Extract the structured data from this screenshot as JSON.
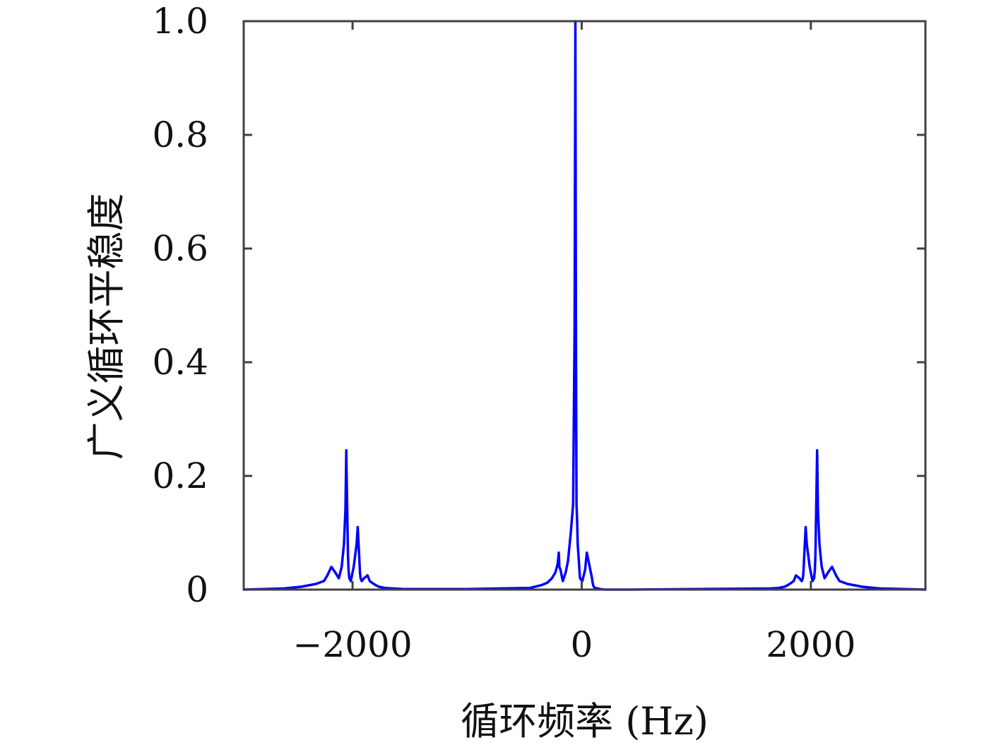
{
  "chart_data": {
    "type": "line",
    "title": "",
    "xlabel": "循环频率 (Hz)",
    "ylabel": "广义循环平稳度",
    "xlim": [
      -2950,
      3000
    ],
    "ylim": [
      0,
      1.0
    ],
    "xticks": [
      -2000,
      0,
      2000
    ],
    "xtick_labels": [
      "−2000",
      "0",
      "2000"
    ],
    "yticks": [
      0,
      0.2,
      0.4,
      0.6,
      0.8,
      1.0
    ],
    "ytick_labels": [
      "0",
      "0.2",
      "0.4",
      "0.6",
      "0.8",
      "1.0"
    ],
    "grid": false,
    "legend": "none",
    "line_color": "#0000ff",
    "series": [
      {
        "x": [
          -2950,
          -2600,
          -2450,
          -2320,
          -2250,
          -2220,
          -2185,
          -2150,
          -2120,
          -2095,
          -2075,
          -2062,
          -2055,
          -2050,
          -2045,
          -2040,
          -2035,
          -2028,
          -2015,
          -1990,
          -1965,
          -1955,
          -1945,
          -1940,
          -1935,
          -1930,
          -1920,
          -1900,
          -1870,
          -1850,
          -1830,
          -1800,
          -1770,
          -1720,
          -1650,
          -1550,
          -1000,
          -450,
          -350,
          -300,
          -260,
          -230,
          -210,
          -200,
          -195,
          -185,
          -165,
          -140,
          -120,
          -95,
          -75,
          -62,
          -55,
          -50,
          -45,
          -40,
          -35,
          -28,
          -15,
          5,
          30,
          45,
          65,
          80,
          90,
          95,
          100,
          105,
          115,
          140,
          160,
          200,
          260,
          320,
          420,
          1000,
          1650,
          1720,
          1770,
          1800,
          1830,
          1850,
          1870,
          1900,
          1920,
          1930,
          1935,
          1940,
          1945,
          1955,
          1965,
          1990,
          2015,
          2028,
          2035,
          2040,
          2045,
          2050,
          2055,
          2062,
          2075,
          2095,
          2120,
          2150,
          2185,
          2220,
          2250,
          2320,
          2450,
          2600,
          3000
        ],
        "y": [
          0.0,
          0.002,
          0.005,
          0.01,
          0.015,
          0.025,
          0.04,
          0.03,
          0.02,
          0.04,
          0.08,
          0.14,
          0.245,
          0.18,
          0.12,
          0.06,
          0.035,
          0.02,
          0.015,
          0.04,
          0.08,
          0.11,
          0.07,
          0.05,
          0.03,
          0.02,
          0.015,
          0.02,
          0.025,
          0.015,
          0.012,
          0.008,
          0.005,
          0.003,
          0.002,
          0.001,
          0.001,
          0.003,
          0.008,
          0.012,
          0.02,
          0.03,
          0.045,
          0.065,
          0.04,
          0.035,
          0.015,
          0.03,
          0.05,
          0.1,
          0.15,
          0.46,
          1.0,
          0.46,
          0.15,
          0.12,
          0.08,
          0.06,
          0.02,
          0.015,
          0.035,
          0.065,
          0.045,
          0.03,
          0.02,
          0.012,
          0.008,
          0.005,
          0.003,
          0.002,
          0.001,
          0.0,
          0.0,
          0.0,
          0.0,
          0.001,
          0.002,
          0.003,
          0.005,
          0.008,
          0.012,
          0.015,
          0.025,
          0.02,
          0.015,
          0.02,
          0.03,
          0.05,
          0.07,
          0.11,
          0.08,
          0.04,
          0.015,
          0.02,
          0.035,
          0.06,
          0.12,
          0.18,
          0.245,
          0.14,
          0.08,
          0.04,
          0.02,
          0.03,
          0.04,
          0.025,
          0.015,
          0.01,
          0.005,
          0.002,
          0.0
        ]
      }
    ]
  }
}
